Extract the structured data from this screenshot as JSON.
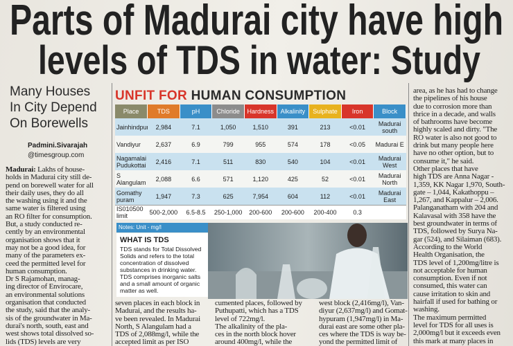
{
  "headline": [
    "Parts of Madurai city have high",
    "levels of TDS in water: Study"
  ],
  "subhead": [
    "Many Houses",
    "In City Depend",
    "On Borewells"
  ],
  "byline": {
    "name": "Padmini.Sivarajah",
    "handle": "@timesgroup.com"
  },
  "left_column": {
    "dateline": "Madurai:",
    "lines": [
      " Lakhs of house-",
      "holds in Madurai city still de-",
      "pend on borewell water for all",
      "their daily uses, they do all",
      "the washing using it and the",
      "same water is filtered using",
      "an RO filter for consumption.",
      "But, a study conducted re-",
      "cently by an environmental",
      "organisation shows that it",
      "may not be a good idea, for",
      "many of the parameters ex-",
      "ceed the permitted level for",
      "human consumption.",
      "Dr S Rajamohan, manag-",
      "ing director of Envirocare,",
      "an environmental solutions",
      "organisation that conducted",
      "the study, said that the analy-",
      "sis of the groundwater in Ma-",
      "durai's north, south, east and",
      "west shows total dissolved so-",
      "lids (TDS) levels are very"
    ]
  },
  "table": {
    "title_red": "UNFIT FOR",
    "title_dark": "HUMAN CONSUMPTION",
    "headers": [
      "Place",
      "TDS",
      "pH",
      "Chloride",
      "Hardness",
      "Alkalinity",
      "Sulphate",
      "Iron",
      "Block"
    ],
    "rows": [
      [
        "Jainhindpuram",
        "2,984",
        "7.1",
        "1,050",
        "1,510",
        "391",
        "213",
        "<0.01",
        "Madurai south"
      ],
      [
        "Vandiyur",
        "2,637",
        "6.9",
        "799",
        "955",
        "574",
        "178",
        "<0.05",
        "Madurai E"
      ],
      [
        "Nagamalai Pudukottai",
        "2,416",
        "7.1",
        "511",
        "830",
        "540",
        "104",
        "<0.01",
        "Madurai West"
      ],
      [
        "S Alangulam",
        "2,088",
        "6.6",
        "571",
        "1,120",
        "425",
        "52",
        "<0.01",
        "Madurai North"
      ],
      [
        "Gomathy puram",
        "1,947",
        "7.3",
        "625",
        "7,954",
        "604",
        "112",
        "<0.01",
        "Madurai East"
      ],
      [
        "IS010500 limit",
        "500-2,000",
        "6.5-8.5",
        "250-1,000",
        "200-600",
        "200-600",
        "200-400",
        "0.3"
      ]
    ],
    "notes": "Notes: Unit - mg/l"
  },
  "tds_box": {
    "heading": "WHAT IS TDS",
    "lines": [
      "TDS stands for Total Dissolved",
      "Solids and refers to the total",
      "concentration of dissolved",
      "substances in drinking water.",
      "TDS comprises inorganic salts",
      "and a small amount of organic",
      "matter as well."
    ]
  },
  "bottom_columns": [
    [
      "seven places in each block in",
      "Madurai, and the results ha-",
      "ve been revealed. In Madurai",
      "North, S Alangulam had a",
      "TDS of 2,088mg/l, while the",
      "accepted limit as per ISO"
    ],
    [
      "cumented places, followed by",
      "Puthupatti, which has a TDS",
      "level of 722mg/l.",
      "The alkalinity of the pla-",
      "ces in the north block hover",
      "around 400mg/l, while the"
    ],
    [
      "west block (2,416mg/l), Van-",
      "diyur (2,637mg/l) and Gomat-",
      "hypuram (1,947mg/l) in Ma-",
      "durai east are some other pla-",
      "ces where the TDS is way be-",
      "yond the permitted limit of"
    ]
  ],
  "right_column": [
    "area, as he has had to change",
    "the pipelines of his house",
    "due to corrosion more than",
    "thrice in a decade, and walls",
    "of bathrooms have become",
    "highly scaled and dirty. \"The",
    "RO water is also not good to",
    "drink but many people here",
    "have no other option, but to",
    "consume it,\" he said.",
    "Other places that have",
    "high TDS are Anna Nagar -",
    "1,359, KK Nagar 1,970, South-",
    "gate – 1,044, Kakathoppu –",
    "1,267, and Kappalur – 2,006.",
    "Palanganatham with 204 and",
    "Kalavasal with 358 have the",
    "best groundwater in terms of",
    "TDS, followed by Surya Na-",
    "gar (524), and Silaiman (683).",
    "According to the World",
    "Health Organisation, the",
    "TDS level of 1,200mg/litre is",
    "not acceptable for human",
    "consumption. Even if not",
    "consumed, this water can",
    "cause irritation to skin and",
    "hairfall if used for bathing or",
    "washing.",
    "The maximum permitted",
    "level for TDS for all uses is",
    "2,000mg/l but it exceeds even",
    "this mark at many places in"
  ]
}
